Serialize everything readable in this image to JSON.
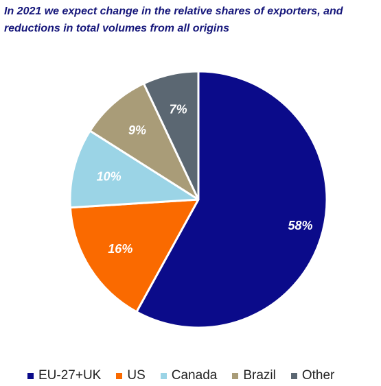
{
  "chart_data": {
    "type": "pie",
    "title": "In 2021 we expect change in the relative shares of exporters, and reductions in total volumes from all origins",
    "categories": [
      "EU-27+UK",
      "US",
      "Canada",
      "Brazil",
      "Other"
    ],
    "values": [
      58,
      16,
      10,
      9,
      7
    ],
    "labels": [
      "58%",
      "16%",
      "10%",
      "9%",
      "7%"
    ],
    "colors": [
      "#0b0b8a",
      "#fa6a00",
      "#9bd4e6",
      "#a99c78",
      "#5b6772"
    ],
    "label_color": "#ffffff",
    "legend_position": "bottom"
  }
}
